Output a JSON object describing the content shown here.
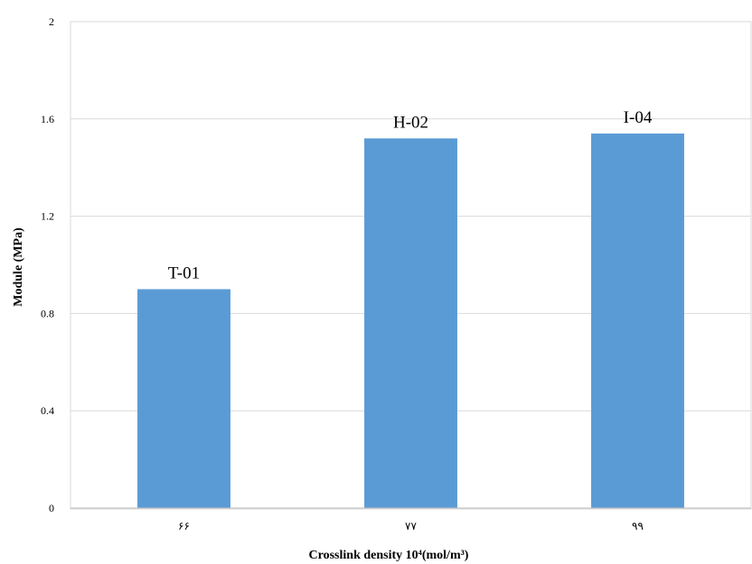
{
  "chart_data": {
    "type": "bar",
    "title": "",
    "xlabel": "Crosslink density 10⁴(mol/m³)",
    "ylabel": "Module (MPa)",
    "categories": [
      "۶۶",
      "۷۷",
      "۹۹"
    ],
    "series": [
      {
        "values": [
          0.9,
          1.52,
          1.54
        ],
        "color": "#5b9bd5",
        "data_labels": [
          "T-01",
          "H-02",
          "I-04"
        ]
      }
    ],
    "ylim": [
      0,
      2
    ],
    "yticks": [
      "0",
      "0.4",
      "0.8",
      "1.2",
      "1.6",
      "2"
    ],
    "grid": true,
    "legend": "none"
  }
}
